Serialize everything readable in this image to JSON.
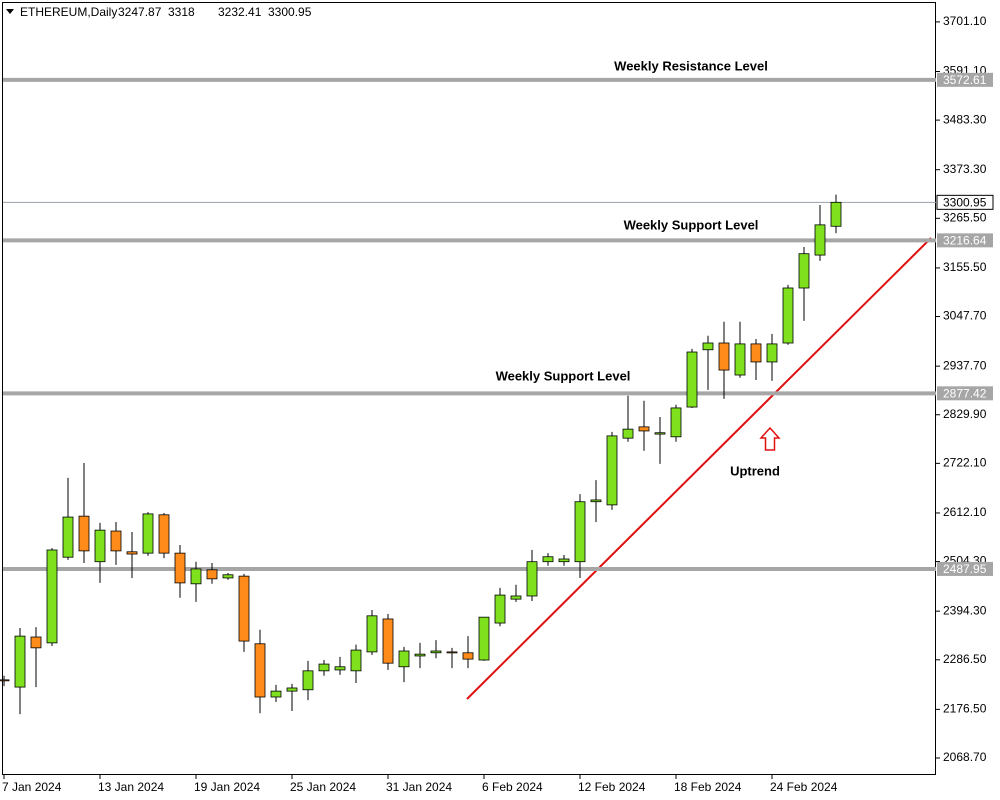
{
  "chart_data": {
    "type": "candlestick",
    "title": "ETHEREUM,Daily",
    "categories": [
      "7 Jan 2024",
      null,
      null,
      null,
      null,
      null,
      "13 Jan 2024",
      null,
      null,
      null,
      null,
      null,
      "19 Jan 2024",
      null,
      null,
      null,
      null,
      null,
      "25 Jan 2024",
      null,
      null,
      null,
      null,
      null,
      "31 Jan 2024",
      null,
      null,
      null,
      null,
      null,
      "6 Feb 2024",
      null,
      null,
      null,
      null,
      null,
      "12 Feb 2024",
      null,
      null,
      null,
      null,
      null,
      "18 Feb 2024",
      null,
      null,
      null,
      null,
      null,
      "24 Feb 2024",
      null,
      null,
      null,
      null
    ],
    "open": [
      2242,
      2226,
      2337,
      2324,
      2514,
      2605,
      2504,
      2572,
      2526,
      2523,
      2608,
      2523,
      2455,
      2486,
      2468,
      2472,
      2322,
      2204,
      2217,
      2220,
      2262,
      2264,
      2262,
      2304,
      2377,
      2271,
      2295,
      2302,
      2304,
      2302,
      2286,
      2368,
      2421,
      2428,
      2504,
      2504,
      2504,
      2637,
      2630,
      2778,
      2803,
      2787,
      2781,
      2847,
      2974,
      2989,
      2918,
      2987,
      2947,
      2989,
      3111,
      3184,
      3247.87
    ],
    "high": [
      2251,
      2357,
      2359,
      2534,
      2690,
      2723,
      2590,
      2592,
      2570,
      2614,
      2612,
      2541,
      2504,
      2501,
      2479,
      2477,
      2353,
      2231,
      2233,
      2284,
      2286,
      2293,
      2320,
      2397,
      2388,
      2315,
      2324,
      2330,
      2313,
      2339,
      2381,
      2446,
      2453,
      2530,
      2523,
      2519,
      2654,
      2685,
      2792,
      2872,
      2861,
      2825,
      2852,
      2976,
      3005,
      3036,
      3036,
      2998,
      3009,
      3118,
      3202,
      3295,
      3318.0
    ],
    "low": [
      2228,
      2166,
      2226,
      2317,
      2508,
      2501,
      2457,
      2497,
      2468,
      2517,
      2512,
      2424,
      2415,
      2455,
      2464,
      2304,
      2168,
      2193,
      2173,
      2197,
      2251,
      2253,
      2235,
      2297,
      2264,
      2237,
      2268,
      2290,
      2268,
      2268,
      2284,
      2361,
      2415,
      2417,
      2495,
      2495,
      2468,
      2592,
      2619,
      2770,
      2750,
      2721,
      2770,
      2845,
      2885,
      2865,
      2912,
      2907,
      2905,
      2985,
      3038,
      3171,
      3232.41
    ],
    "close": [
      2240,
      2339,
      2313,
      2530,
      2603,
      2528,
      2574,
      2528,
      2521,
      2610,
      2523,
      2457,
      2488,
      2466,
      2475,
      2328,
      2204,
      2217,
      2224,
      2262,
      2277,
      2271,
      2308,
      2384,
      2279,
      2306,
      2299,
      2306,
      2302,
      2288,
      2381,
      2430,
      2428,
      2504,
      2515,
      2510,
      2637,
      2641,
      2783,
      2798,
      2794,
      2790,
      2845,
      2969,
      2989,
      2929,
      2987,
      2947,
      2987,
      3111,
      3187,
      3251,
      3300.95
    ],
    "up_color": "#7fe01e",
    "down_color": "#ff8c1a",
    "ylim": [
      2031,
      3743
    ],
    "yticks": [
      {
        "value": 3701.1,
        "label": "3701.10"
      },
      {
        "value": 3591.1,
        "label": "3591.10"
      },
      {
        "value": 3483.3,
        "label": "3483.30"
      },
      {
        "value": 3373.3,
        "label": "3373.30"
      },
      {
        "value": 3265.5,
        "label": "3265.50"
      },
      {
        "value": 3155.5,
        "label": "3155.50"
      },
      {
        "value": 3047.7,
        "label": "3047.70"
      },
      {
        "value": 2937.7,
        "label": "2937.70"
      },
      {
        "value": 2829.9,
        "label": "2829.90"
      },
      {
        "value": 2722.1,
        "label": "2722.10"
      },
      {
        "value": 2612.1,
        "label": "2612.10"
      },
      {
        "value": 2504.3,
        "label": "2504.30"
      },
      {
        "value": 2394.3,
        "label": "2394.30"
      },
      {
        "value": 2286.5,
        "label": "2286.50"
      },
      {
        "value": 2176.5,
        "label": "2176.50"
      },
      {
        "value": 2068.7,
        "label": "2068.70"
      }
    ],
    "levels": [
      3572.61,
      3216.64,
      2877.42,
      2487.95
    ],
    "level_color": "#a6a6a6",
    "annotations": [
      "Weekly Resistance Level",
      "Weekly Support Level",
      "Weekly Support Level",
      "Uptrend"
    ]
  }
}
